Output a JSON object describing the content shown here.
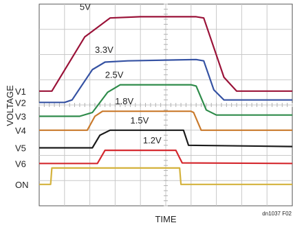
{
  "chart_data": {
    "type": "line",
    "title": "",
    "xlabel": "TIME",
    "ylabel": "VOLTAGE",
    "note": "dn1037 F02",
    "grid": true,
    "x_divisions": 10,
    "y_divisions": 8,
    "xlim": [
      0,
      10
    ],
    "ylim": [
      0,
      8
    ],
    "series": [
      {
        "name": "5V",
        "row_label": "V1",
        "color": "#9a1238",
        "x": [
          0,
          0.5,
          1.8,
          2.8,
          4,
          6.2,
          6.5,
          7.3,
          7.8,
          10
        ],
        "y": [
          4.55,
          4.55,
          6.7,
          7.45,
          7.5,
          7.5,
          7.45,
          5.1,
          4.55,
          4.55
        ]
      },
      {
        "name": "3.3V",
        "row_label": "V2",
        "color": "#3552a3",
        "x": [
          0,
          1.0,
          1.3,
          2.1,
          2.6,
          3.5,
          6.2,
          6.5,
          6.9,
          7.3,
          10
        ],
        "y": [
          4.1,
          4.1,
          4.2,
          5.4,
          5.7,
          5.75,
          5.8,
          5.75,
          4.6,
          4.2,
          4.2
        ]
      },
      {
        "name": "2.5V",
        "row_label": "V3",
        "color": "#2e8b4a",
        "x": [
          0,
          1.6,
          2.1,
          2.7,
          3.2,
          6.0,
          6.2,
          6.6,
          7.0,
          10
        ],
        "y": [
          3.55,
          3.55,
          3.7,
          4.5,
          4.8,
          4.8,
          4.75,
          3.8,
          3.6,
          3.6
        ]
      },
      {
        "name": "1.8V",
        "row_label": "V4",
        "color": "#c97a2c",
        "x": [
          0,
          1.9,
          2.2,
          2.5,
          6.0,
          6.1,
          6.4,
          10
        ],
        "y": [
          3.0,
          3.0,
          3.55,
          3.75,
          3.75,
          3.7,
          3.0,
          3.0
        ]
      },
      {
        "name": "1.5V",
        "row_label": "V5",
        "color": "#1a1a1a",
        "x": [
          0,
          2.1,
          2.4,
          2.8,
          5.7,
          5.9,
          10
        ],
        "y": [
          2.3,
          2.3,
          2.8,
          3.0,
          3.0,
          2.4,
          2.35
        ]
      },
      {
        "name": "1.2V",
        "row_label": "V6",
        "color": "#d4282e",
        "x": [
          0,
          2.3,
          2.6,
          5.4,
          5.55,
          5.65,
          10
        ],
        "y": [
          1.68,
          1.68,
          2.2,
          2.2,
          1.9,
          1.7,
          1.68
        ]
      },
      {
        "name": "",
        "row_label": "ON",
        "color": "#d4b23c",
        "x": [
          0,
          0.45,
          0.5,
          5.55,
          5.6,
          10
        ],
        "y": [
          0.85,
          0.85,
          1.5,
          1.5,
          0.85,
          0.85
        ]
      }
    ]
  }
}
